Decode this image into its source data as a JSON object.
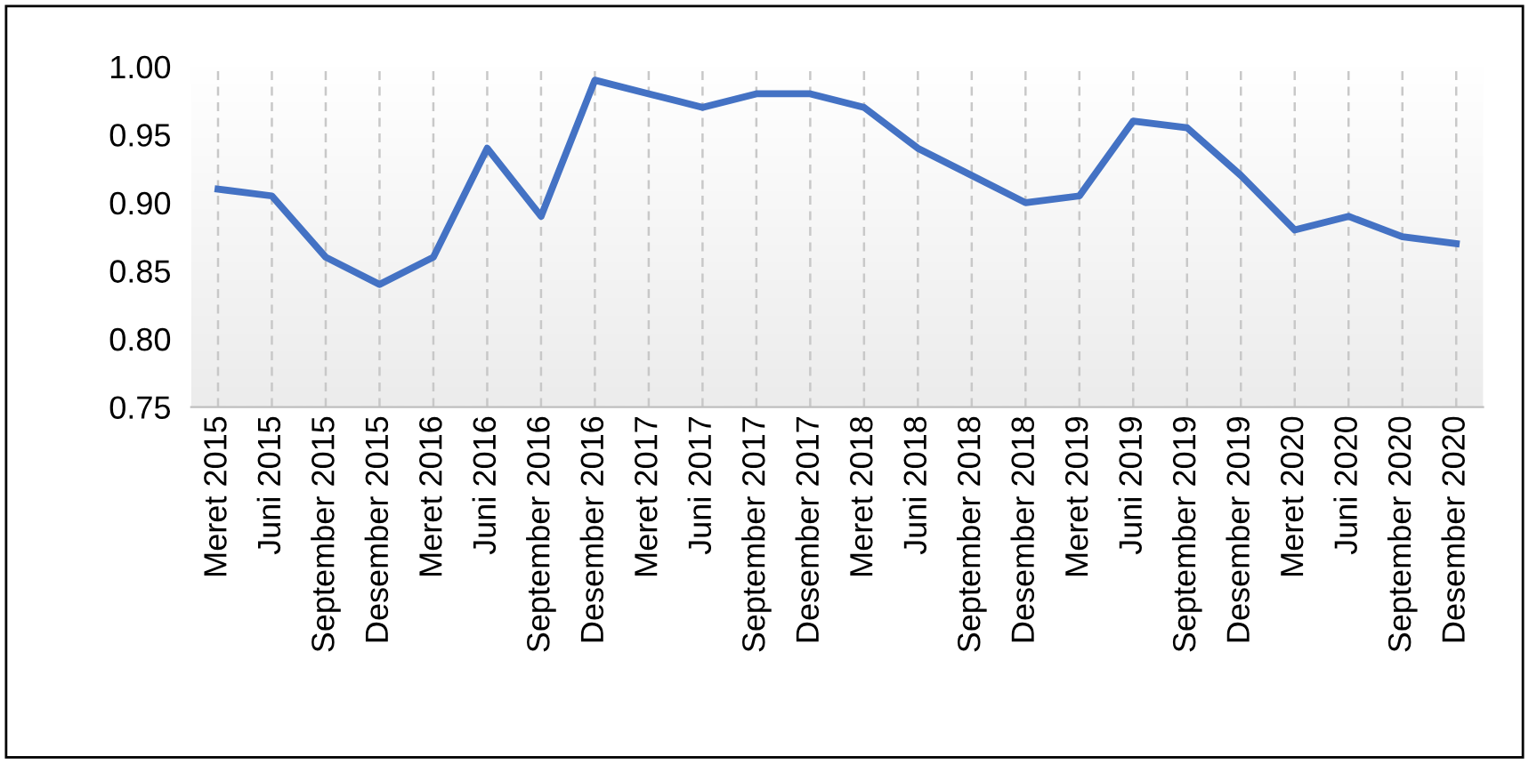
{
  "chart_data": {
    "type": "line",
    "categories": [
      "Meret 2015",
      "Juni 2015",
      "September 2015",
      "Desember 2015",
      "Meret 2016",
      "Juni 2016",
      "September 2016",
      "Desember 2016",
      "Meret 2017",
      "Juni 2017",
      "September 2017",
      "Desember 2017",
      "Meret 2018",
      "Juni 2018",
      "September 2018",
      "Desember 2018",
      "Meret 2019",
      "Juni 2019",
      "September 2019",
      "Desember 2019",
      "Meret 2020",
      "Juni 2020",
      "September 2020",
      "Desember 2020"
    ],
    "series": [
      {
        "color": "#4472c4",
        "values": [
          0.91,
          0.905,
          0.86,
          0.84,
          0.86,
          0.94,
          0.89,
          0.99,
          0.98,
          0.97,
          0.98,
          0.98,
          0.97,
          0.94,
          0.92,
          0.9,
          0.905,
          0.96,
          0.955,
          0.92,
          0.88,
          0.89,
          0.875,
          0.87
        ]
      }
    ],
    "ylim": [
      0.75,
      1.0
    ],
    "yticks": [
      {
        "value": 0.75,
        "label": "0.75"
      },
      {
        "value": 0.8,
        "label": "0.80"
      },
      {
        "value": 0.85,
        "label": "0.85"
      },
      {
        "value": 0.9,
        "label": "0.90"
      },
      {
        "value": 0.95,
        "label": "0.95"
      },
      {
        "value": 1.0,
        "label": "1.00"
      }
    ],
    "grid": "x",
    "legend": false,
    "marker": "none",
    "line_style": "solid"
  }
}
